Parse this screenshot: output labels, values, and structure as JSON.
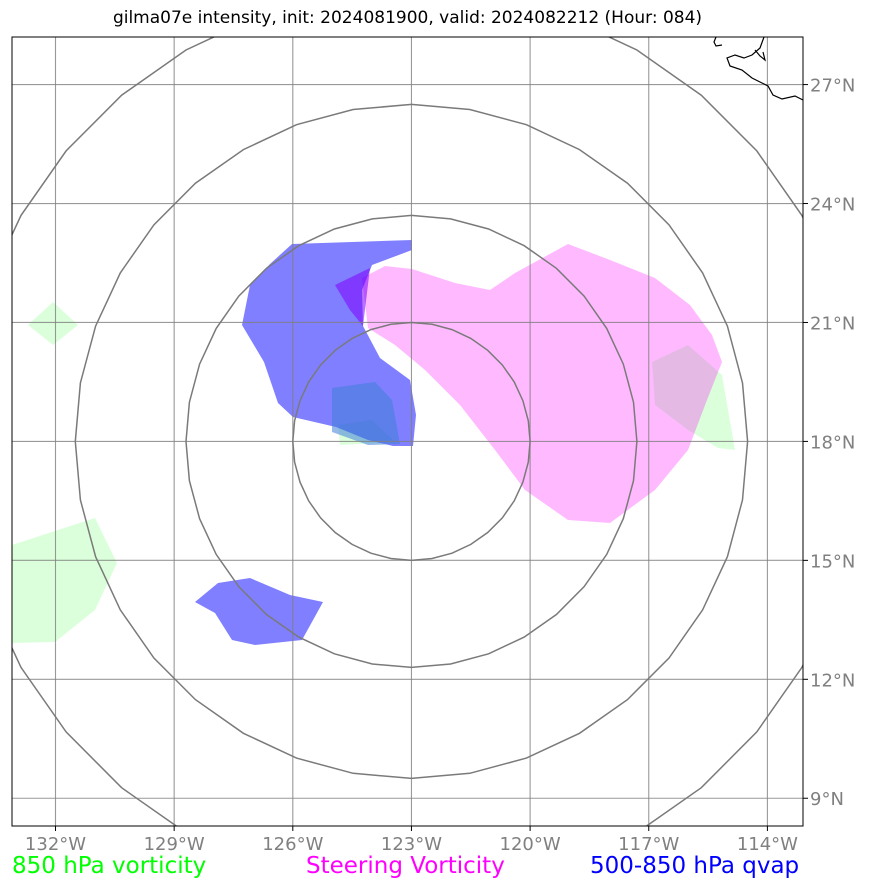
{
  "title": "gilma07e intensity, init: 2024081900, valid: 2024082212 (Hour: 084)",
  "map": {
    "lon_min": -133.1,
    "lon_max": -113.1,
    "lat_min": 8.3,
    "lat_max": 28.2,
    "lon_ticks": [
      {
        "lon": -132,
        "label": "132°W"
      },
      {
        "lon": -129,
        "label": "129°W"
      },
      {
        "lon": -126,
        "label": "126°W"
      },
      {
        "lon": -123,
        "label": "123°W"
      },
      {
        "lon": -120,
        "label": "120°W"
      },
      {
        "lon": -117,
        "label": "117°W"
      },
      {
        "lon": -114,
        "label": "114°W"
      }
    ],
    "lat_ticks": [
      {
        "lat": 27,
        "label": "27°N"
      },
      {
        "lat": 24,
        "label": "24°N"
      },
      {
        "lat": 21,
        "label": "21°N"
      },
      {
        "lat": 18,
        "label": "18°N"
      },
      {
        "lat": 15,
        "label": "15°N"
      },
      {
        "lat": 12,
        "label": "12°N"
      },
      {
        "lat": 9,
        "label": "9°N"
      }
    ],
    "range_rings": {
      "center_lon": -123.0,
      "center_lat": 18.0,
      "radii_deg": [
        3.0,
        5.7,
        8.5,
        11.4
      ]
    },
    "colors": {
      "vort850": "#00ff00",
      "steering": "#ff00ff",
      "qvap": "#0000ff",
      "grid": "#808080",
      "coast": "#000000"
    }
  },
  "legend": {
    "vort850": "850 hPa vorticity",
    "steering": "Steering Vorticity",
    "qvap": "500-850 hPa qvap"
  }
}
